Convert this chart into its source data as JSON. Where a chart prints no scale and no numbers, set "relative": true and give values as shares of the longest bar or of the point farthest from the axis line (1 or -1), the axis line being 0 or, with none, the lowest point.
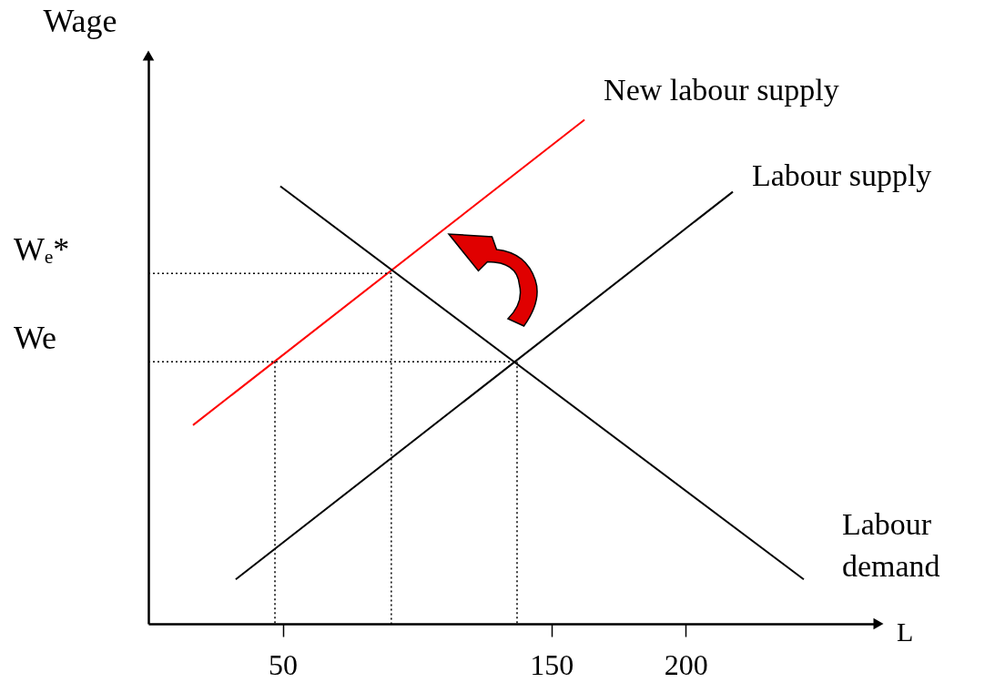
{
  "chart_data": {
    "type": "line",
    "xlabel": "L",
    "ylabel": "Wage",
    "relative": true,
    "xlim": [
      0,
      271.7
    ],
    "xticks": [
      50,
      150,
      200
    ],
    "tick_labels": "x",
    "grid": false,
    "legend": false,
    "marker": "none",
    "line_style": "solid",
    "series": [
      {
        "name": "New labour supply",
        "color": "#ff0000",
        "x": [
          16.6,
          162.3
        ],
        "values": [
          0.394,
          1
        ]
      },
      {
        "name": "Labour supply",
        "color": "#000000",
        "x": [
          32.5,
          217.5
        ],
        "values": [
          0.088,
          0.857
        ]
      },
      {
        "name": "Labour demand",
        "color": "#000000",
        "x": [
          49.1,
          243.9
        ],
        "values": [
          0.868,
          0.088
        ]
      },
      {
        "color": "#000000",
        "line_style": "dotted",
        "x": [
          0,
          137.2,
          137.2
        ],
        "values": [
          0.52,
          0.52,
          0
        ]
      },
      {
        "color": "#000000",
        "line_style": "dotted",
        "x": [
          0,
          90.4,
          90.4
        ],
        "values": [
          0.695,
          0.695,
          0
        ]
      },
      {
        "color": "#000000",
        "line_style": "dotted",
        "x": [
          47.1,
          47.1
        ],
        "values": [
          0.52,
          0
        ]
      }
    ],
    "annotations": [
      {
        "text": "Wₑ*",
        "x": 0,
        "y": 0.695
      },
      {
        "text": "We",
        "x": 0,
        "y": 0.52
      }
    ]
  }
}
